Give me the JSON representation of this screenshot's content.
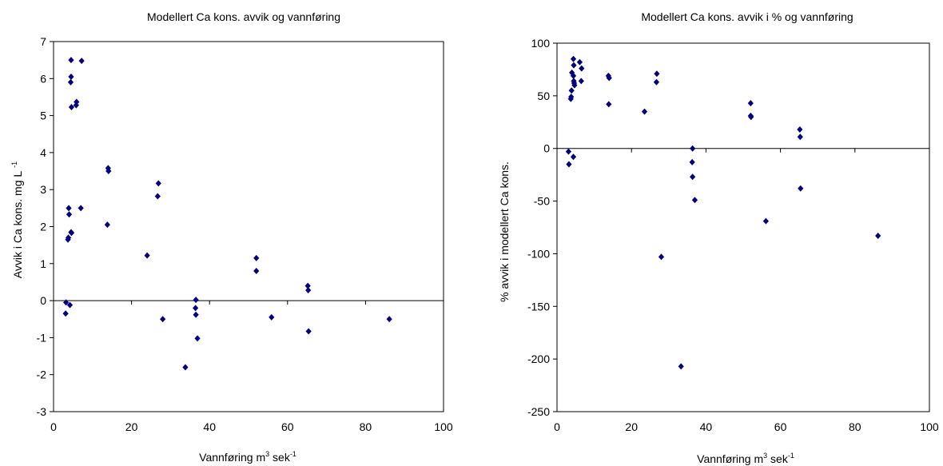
{
  "chart_data": [
    {
      "type": "scatter",
      "title": "Modellert Ca kons. avvik og vannføring",
      "xlabel": {
        "base": "Vannføring m",
        "sup1": "3",
        "mid": " sek",
        "sup2": "-1"
      },
      "ylabel": {
        "base": "Avvik i Ca kons. mg L",
        "sup": "-1"
      },
      "xlim": [
        0,
        100
      ],
      "ylim": [
        -3,
        7
      ],
      "xticks": [
        "0",
        "20",
        "40",
        "60",
        "80",
        "100"
      ],
      "yticks": [
        "-3",
        "-2",
        "-1",
        "0",
        "1",
        "2",
        "3",
        "4",
        "5",
        "6",
        "7"
      ],
      "grid": false,
      "marker_color": "#000080",
      "points": [
        [
          3.1,
          -0.35
        ],
        [
          3.2,
          -0.05
        ],
        [
          4.2,
          -0.12
        ],
        [
          3.7,
          1.65
        ],
        [
          3.8,
          1.7
        ],
        [
          4.5,
          1.85
        ],
        [
          4.6,
          1.83
        ],
        [
          4.0,
          2.33
        ],
        [
          3.9,
          2.5
        ],
        [
          7.0,
          2.5
        ],
        [
          4.6,
          5.23
        ],
        [
          5.8,
          5.28
        ],
        [
          5.9,
          5.37
        ],
        [
          4.4,
          5.9
        ],
        [
          4.5,
          6.05
        ],
        [
          4.5,
          6.5
        ],
        [
          7.2,
          6.48
        ],
        [
          13.8,
          2.05
        ],
        [
          14.1,
          3.5
        ],
        [
          14.0,
          3.58
        ],
        [
          24.0,
          1.22
        ],
        [
          26.9,
          3.17
        ],
        [
          26.7,
          2.82
        ],
        [
          28.0,
          -0.5
        ],
        [
          33.8,
          -1.8
        ],
        [
          36.5,
          0.02
        ],
        [
          36.4,
          -0.2
        ],
        [
          36.5,
          -0.38
        ],
        [
          36.9,
          -1.02
        ],
        [
          52.0,
          1.15
        ],
        [
          52.0,
          0.8
        ],
        [
          55.9,
          -0.45
        ],
        [
          65.2,
          0.4
        ],
        [
          65.3,
          0.28
        ],
        [
          65.4,
          -0.83
        ],
        [
          86.1,
          -0.5
        ]
      ]
    },
    {
      "type": "scatter",
      "title": "Modellert Ca kons. avvik i % og vannføring",
      "xlabel": {
        "base": "Vannføring m",
        "sup1": "3",
        "mid": " sek",
        "sup2": "-1"
      },
      "ylabel": {
        "base": "% avvik i modellert Ca kons.",
        "sup": ""
      },
      "xlim": [
        0,
        100
      ],
      "ylim": [
        -250,
        100
      ],
      "xticks": [
        "0",
        "20",
        "40",
        "60",
        "80",
        "100"
      ],
      "yticks": [
        "-250",
        "-200",
        "-150",
        "-100",
        "-50",
        "0",
        "50",
        "100"
      ],
      "grid": false,
      "marker_color": "#000080",
      "points": [
        [
          3.1,
          -3
        ],
        [
          3.2,
          -15
        ],
        [
          4.4,
          -8
        ],
        [
          3.7,
          47
        ],
        [
          3.8,
          49
        ],
        [
          3.9,
          55
        ],
        [
          4.0,
          72
        ],
        [
          4.4,
          69
        ],
        [
          4.5,
          64
        ],
        [
          4.6,
          62
        ],
        [
          4.7,
          60
        ],
        [
          4.4,
          85
        ],
        [
          4.5,
          79
        ],
        [
          6.1,
          82
        ],
        [
          6.6,
          76
        ],
        [
          6.5,
          64
        ],
        [
          13.8,
          69
        ],
        [
          14.0,
          67
        ],
        [
          13.9,
          42
        ],
        [
          23.5,
          35
        ],
        [
          26.8,
          71
        ],
        [
          26.7,
          63
        ],
        [
          28.0,
          -103
        ],
        [
          33.3,
          -207
        ],
        [
          36.4,
          0
        ],
        [
          36.3,
          -13
        ],
        [
          36.4,
          -27
        ],
        [
          37.0,
          -49
        ],
        [
          52.0,
          43
        ],
        [
          52.0,
          31
        ],
        [
          52.1,
          30
        ],
        [
          56.1,
          -69
        ],
        [
          65.2,
          18
        ],
        [
          65.3,
          11
        ],
        [
          65.4,
          -38
        ],
        [
          86.2,
          -83
        ]
      ]
    }
  ]
}
